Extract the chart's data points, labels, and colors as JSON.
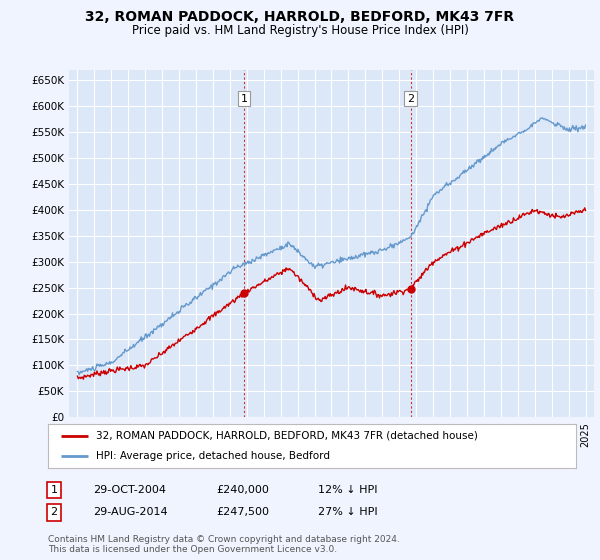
{
  "title": "32, ROMAN PADDOCK, HARROLD, BEDFORD, MK43 7FR",
  "subtitle": "Price paid vs. HM Land Registry's House Price Index (HPI)",
  "background_color": "#f0f4ff",
  "plot_bg_color": "#dce8f8",
  "grid_color": "#ffffff",
  "red_color": "#cc0000",
  "blue_color": "#6699cc",
  "ylim": [
    0,
    670000
  ],
  "yticks": [
    0,
    50000,
    100000,
    150000,
    200000,
    250000,
    300000,
    350000,
    400000,
    450000,
    500000,
    550000,
    600000,
    650000
  ],
  "ytick_labels": [
    "£0",
    "£50K",
    "£100K",
    "£150K",
    "£200K",
    "£250K",
    "£300K",
    "£350K",
    "£400K",
    "£450K",
    "£500K",
    "£550K",
    "£600K",
    "£650K"
  ],
  "sale1_year": 2004.83,
  "sale1_price": 240000,
  "sale1_label": "1",
  "sale2_year": 2014.67,
  "sale2_price": 247500,
  "sale2_label": "2",
  "legend_label_red": "32, ROMAN PADDOCK, HARROLD, BEDFORD, MK43 7FR (detached house)",
  "legend_label_blue": "HPI: Average price, detached house, Bedford",
  "footer_text": "Contains HM Land Registry data © Crown copyright and database right 2024.\nThis data is licensed under the Open Government Licence v3.0.",
  "table_row1": [
    "1",
    "29-OCT-2004",
    "£240,000",
    "12% ↓ HPI"
  ],
  "table_row2": [
    "2",
    "29-AUG-2014",
    "£247,500",
    "27% ↓ HPI"
  ]
}
